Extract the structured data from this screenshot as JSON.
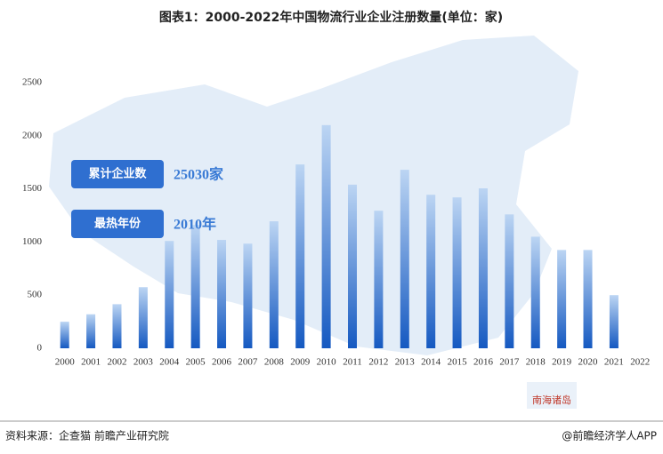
{
  "chart_data": {
    "type": "bar",
    "title": "图表1：2000-2022年中国物流行业企业注册数量(单位：家)",
    "categories": [
      "2000",
      "2001",
      "2002",
      "2003",
      "2004",
      "2005",
      "2006",
      "2007",
      "2008",
      "2009",
      "2010",
      "2011",
      "2012",
      "2013",
      "2014",
      "2015",
      "2016",
      "2017",
      "2018",
      "2019",
      "2020",
      "2021",
      "2022"
    ],
    "values": [
      250,
      320,
      415,
      575,
      1010,
      1160,
      1020,
      985,
      1195,
      1730,
      2100,
      1540,
      1295,
      1680,
      1445,
      1420,
      1505,
      1260,
      1050,
      925,
      925,
      500,
      0
    ],
    "colors": [
      "#bcd5f3",
      "#1559c1"
    ],
    "ylim": [
      0,
      2500
    ],
    "yticks": [
      0,
      500,
      1000,
      1500,
      2000,
      2500
    ],
    "annotations": [
      {
        "label": "累计企业数",
        "text": "25030家"
      },
      {
        "label": "最热年份",
        "text": "2010年"
      }
    ],
    "map_label": "南海诸岛",
    "source": "资料来源：企查猫 前瞻产业研究院",
    "credit": "@前瞻经济学人APP"
  }
}
